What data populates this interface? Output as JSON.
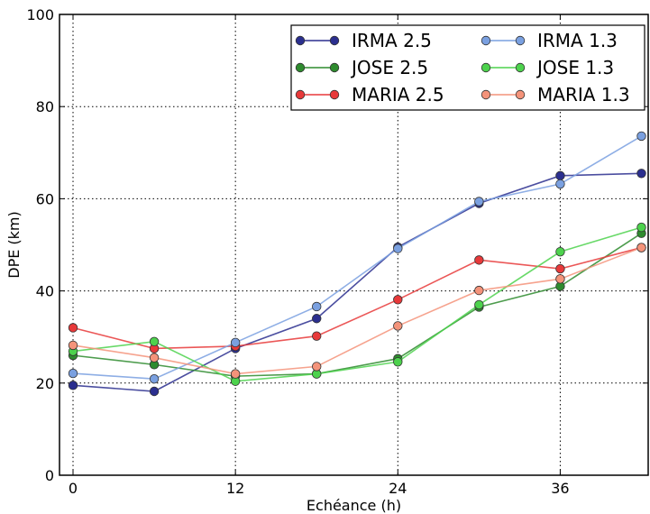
{
  "chart_data": {
    "type": "line",
    "xlabel": "Echéance (h)",
    "ylabel": "DPE (km)",
    "xlim": [
      -1,
      42.5
    ],
    "ylim": [
      0,
      100
    ],
    "xticks": [
      0,
      12,
      24,
      36
    ],
    "yticks": [
      0,
      20,
      40,
      60,
      80,
      100
    ],
    "grid": true,
    "legend_position": "top-right",
    "legend_columns": 2,
    "x": [
      0,
      6,
      12,
      18,
      24,
      30,
      36,
      42
    ],
    "series": [
      {
        "name": "IRMA 2.5",
        "color": "#2b2f8f",
        "values": [
          19.5,
          18.2,
          27.5,
          34.0,
          49.5,
          59.0,
          65.0,
          65.5
        ]
      },
      {
        "name": "JOSE 2.5",
        "color": "#2e8b2e",
        "values": [
          26.0,
          24.0,
          21.5,
          22.0,
          25.3,
          36.5,
          41.0,
          52.5
        ]
      },
      {
        "name": "MARIA 2.5",
        "color": "#e8393a",
        "values": [
          32.0,
          27.5,
          28.0,
          30.2,
          38.1,
          46.7,
          44.8,
          49.4
        ]
      },
      {
        "name": "IRMA 1.3",
        "color": "#7aa0e0",
        "values": [
          22.1,
          20.9,
          28.8,
          36.6,
          49.2,
          59.4,
          63.2,
          73.6
        ]
      },
      {
        "name": "JOSE 1.3",
        "color": "#4dd24d",
        "values": [
          26.9,
          29.0,
          20.4,
          22.0,
          24.6,
          37.0,
          48.5,
          53.8
        ]
      },
      {
        "name": "MARIA 1.3",
        "color": "#f4937a",
        "values": [
          28.2,
          25.5,
          22.0,
          23.6,
          32.4,
          40.1,
          42.6,
          49.4
        ]
      }
    ]
  }
}
